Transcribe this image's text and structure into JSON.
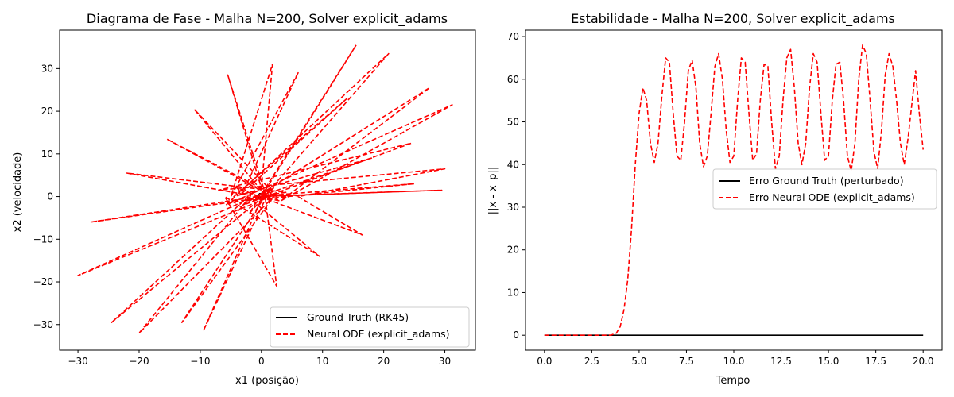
{
  "chart_data": [
    {
      "type": "line",
      "title": "Diagrama de Fase - Malha N=200, Solver explicit_adams",
      "xlabel": "x1 (posição)",
      "ylabel": "x2 (velocidade)",
      "xlim": [
        -33,
        35
      ],
      "ylim": [
        -36,
        39
      ],
      "xticks": [
        -30,
        -20,
        -10,
        0,
        10,
        20,
        30
      ],
      "yticks": [
        -30,
        -20,
        -10,
        0,
        10,
        20,
        30
      ],
      "xtick_labels": [
        "−30",
        "−20",
        "−10",
        "0",
        "10",
        "20",
        "30"
      ],
      "ytick_labels": [
        "−30",
        "−20",
        "−10",
        "0",
        "10",
        "20",
        "30"
      ],
      "grid": false,
      "legend_position": "lower-right",
      "series": [
        {
          "name": "Ground Truth (RK45)",
          "color": "#000000",
          "style": "solid",
          "x": [
            0.0,
            0.9,
            0.6,
            -0.2,
            -0.6,
            -0.3,
            0.4,
            0.7,
            0.3,
            -0.3,
            -0.4,
            0.0
          ],
          "y": [
            0.8,
            0.3,
            -0.5,
            -0.7,
            0.0,
            0.7,
            0.6,
            -0.2,
            -0.6,
            -0.2,
            0.5,
            0.8
          ]
        },
        {
          "name": "Neural ODE (explicit_adams)",
          "color": "#ff0000",
          "style": "dashed",
          "x": [
            0.0,
            15.5,
            -2.0,
            20.8,
            -5.8,
            31.2,
            3.2,
            27.5,
            -3.0,
            24.5,
            -7.0,
            30.0,
            6.0,
            16.5,
            -4.0,
            9.5,
            -6.0,
            2.5,
            0.5,
            -9.5,
            1.5,
            -13.0,
            2.0,
            -20.0,
            -1.0,
            -24.5,
            2.0,
            -30.0,
            1.5,
            -28.0,
            4.0,
            -22.0,
            3.0,
            -15.5,
            2.5,
            -11.0,
            0.8,
            -5.5,
            0.0,
            1.8,
            -5.0,
            6.0,
            -3.0,
            14.0,
            -4.5,
            18.0,
            -2.5,
            25.0,
            -1.0,
            29.5,
            0.0
          ],
          "y": [
            0.0,
            35.5,
            -4.0,
            33.5,
            -2.0,
            21.5,
            -1.0,
            25.5,
            -2.0,
            12.5,
            1.5,
            6.5,
            0.0,
            -9.0,
            2.0,
            -14.0,
            0.0,
            -21.0,
            1.0,
            -31.5,
            2.0,
            -29.5,
            0.0,
            -32.0,
            1.5,
            -29.5,
            2.0,
            -18.5,
            0.0,
            -6.0,
            1.0,
            5.5,
            -1.0,
            13.5,
            0.0,
            20.5,
            0.0,
            28.5,
            2.0,
            31.0,
            0.0,
            29.0,
            1.0,
            23.0,
            0.0,
            9.0,
            -1.0,
            3.0,
            0.0,
            1.5,
            0.0
          ]
        }
      ]
    },
    {
      "type": "line",
      "title": "Estabilidade - Malha N=200, Solver explicit_adams",
      "xlabel": "Tempo",
      "ylabel": "||x - x_p||",
      "xlim": [
        -1.0,
        21.0
      ],
      "ylim": [
        -3.5,
        71.5
      ],
      "xticks": [
        0.0,
        2.5,
        5.0,
        7.5,
        10.0,
        12.5,
        15.0,
        17.5,
        20.0
      ],
      "yticks": [
        0,
        10,
        20,
        30,
        40,
        50,
        60,
        70
      ],
      "xtick_labels": [
        "0.0",
        "2.5",
        "5.0",
        "7.5",
        "10.0",
        "12.5",
        "15.0",
        "17.5",
        "20.0"
      ],
      "ytick_labels": [
        "0",
        "10",
        "20",
        "30",
        "40",
        "50",
        "60",
        "70"
      ],
      "grid": false,
      "legend_position": "center-right",
      "series": [
        {
          "name": "Erro Ground Truth (perturbado)",
          "color": "#000000",
          "style": "solid",
          "x": [
            0.0,
            20.0
          ],
          "y": [
            0.0,
            0.0
          ]
        },
        {
          "name": "Erro Neural ODE (explicit_adams)",
          "color": "#ff0000",
          "style": "dashed",
          "x": [
            0.0,
            3.5,
            3.8,
            4.0,
            4.2,
            4.4,
            4.6,
            4.8,
            5.0,
            5.2,
            5.4,
            5.6,
            5.8,
            6.0,
            6.2,
            6.4,
            6.6,
            6.8,
            7.0,
            7.2,
            7.4,
            7.6,
            7.8,
            8.0,
            8.2,
            8.4,
            8.6,
            8.8,
            9.0,
            9.2,
            9.4,
            9.6,
            9.8,
            10.0,
            10.2,
            10.4,
            10.6,
            10.8,
            11.0,
            11.2,
            11.4,
            11.6,
            11.8,
            12.0,
            12.2,
            12.4,
            12.6,
            12.8,
            13.0,
            13.2,
            13.4,
            13.6,
            13.8,
            14.0,
            14.2,
            14.4,
            14.6,
            14.8,
            15.0,
            15.2,
            15.4,
            15.6,
            15.8,
            16.0,
            16.2,
            16.4,
            16.6,
            16.8,
            17.0,
            17.2,
            17.4,
            17.6,
            17.8,
            18.0,
            18.2,
            18.4,
            18.6,
            18.8,
            19.0,
            19.2,
            19.4,
            19.6,
            19.8,
            20.0
          ],
          "y": [
            0.0,
            0.0,
            0.5,
            2.0,
            6.0,
            13.0,
            25.0,
            40.0,
            52.0,
            58.0,
            55.0,
            45.0,
            40.5,
            45.0,
            56.0,
            65.0,
            64.0,
            52.0,
            42.0,
            41.0,
            50.0,
            62.0,
            64.5,
            58.0,
            45.0,
            39.5,
            42.0,
            52.0,
            63.0,
            66.0,
            60.0,
            48.0,
            40.5,
            42.0,
            55.0,
            65.0,
            64.0,
            52.0,
            41.0,
            42.5,
            55.0,
            63.5,
            63.0,
            50.0,
            39.0,
            42.0,
            55.0,
            65.0,
            67.0,
            58.0,
            45.0,
            40.0,
            45.0,
            58.0,
            66.0,
            64.0,
            52.0,
            41.0,
            42.0,
            55.0,
            63.5,
            64.0,
            55.0,
            42.0,
            38.5,
            45.0,
            60.0,
            68.0,
            66.0,
            55.0,
            43.0,
            39.0,
            48.0,
            61.0,
            66.0,
            63.0,
            55.0,
            45.0,
            40.0,
            46.0,
            54.0,
            62.0,
            52.0,
            43.5
          ]
        }
      ]
    }
  ]
}
